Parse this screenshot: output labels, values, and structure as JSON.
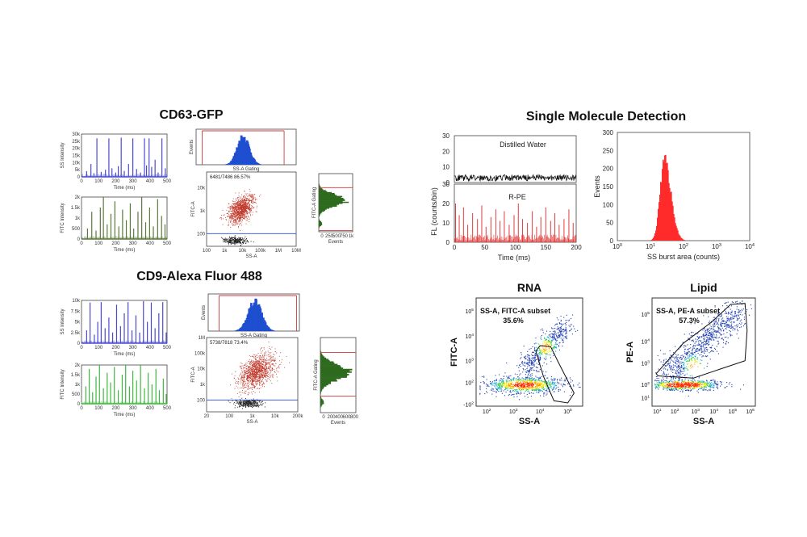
{
  "chart_data": [
    {
      "type": "line",
      "title": "CD63-GFP",
      "ylabel": "SS Intensity",
      "xlabel": "Time (ms)",
      "xlim": [
        0,
        500
      ],
      "ylim": [
        0,
        30000
      ],
      "x_ticks": [
        "0",
        "100",
        "200",
        "300",
        "400",
        "500"
      ],
      "y_ticks": [
        "0",
        "5k",
        "10k",
        "15k",
        "20k",
        "25k",
        "30k"
      ],
      "color": "#4a4ad0",
      "series": [
        {
          "x": [
            30,
            55,
            72,
            90,
            115,
            140,
            160,
            178,
            200,
            215,
            232,
            250,
            275,
            300,
            322,
            345,
            368,
            380,
            395,
            410,
            430,
            448,
            470,
            490
          ],
          "values": [
            4000,
            9000,
            2500,
            27000,
            3500,
            5000,
            27000,
            6000,
            3000,
            7500,
            27500,
            4200,
            9000,
            27000,
            5500,
            3000,
            27000,
            8000,
            27000,
            7000,
            12000,
            3000,
            27000,
            6000
          ]
        }
      ]
    },
    {
      "type": "line",
      "ylabel": "FITC Intensity",
      "xlabel": "Time (ms)",
      "xlim": [
        0,
        500
      ],
      "ylim": [
        0,
        2000
      ],
      "x_ticks": [
        "0",
        "100",
        "200",
        "300",
        "400",
        "500"
      ],
      "y_ticks": [
        "0",
        "500",
        "1k",
        "1.5k",
        "2k"
      ],
      "color": "#5a7a3a",
      "series": [
        {
          "x": [
            35,
            60,
            85,
            110,
            128,
            150,
            172,
            195,
            218,
            240,
            262,
            285,
            305,
            330,
            352,
            375,
            398,
            420,
            445,
            468,
            488
          ],
          "values": [
            500,
            1300,
            400,
            1500,
            2000,
            700,
            1200,
            1800,
            600,
            1400,
            900,
            1700,
            500,
            1300,
            2000,
            800,
            1500,
            600,
            1900,
            1100,
            700
          ]
        }
      ]
    },
    {
      "type": "bar",
      "xlabel": "SS-A Gating",
      "ylabel": "Events",
      "x_scale": "log",
      "xlim": [
        100,
        10000000
      ],
      "gates": [
        200,
        2500000
      ],
      "color": "#1f4fd0",
      "peak_center": 20000,
      "values": [
        0.05,
        0.1,
        0.2,
        0.35,
        0.55,
        0.8,
        1.0,
        0.9,
        0.65,
        0.4,
        0.22,
        0.1,
        0.05
      ]
    },
    {
      "type": "scatter",
      "annotation": "6481/7486  86.57%",
      "xlabel": "SS-A",
      "ylabel": "FITC-A",
      "x_scale": "log",
      "y_scale": "log",
      "xlim": [
        100,
        10000000
      ],
      "x_ticks": [
        "100",
        "1k",
        "10k",
        "100k",
        "1M",
        "10M"
      ],
      "y_ticks": [
        "100",
        "1k",
        "10k"
      ],
      "gate_line_y": 150,
      "colors": [
        "#c0392b",
        "#222222"
      ]
    },
    {
      "type": "bar",
      "orientation": "horizontal",
      "xlabel": "Events",
      "ylabel": "FITC-A Gating",
      "x_ticks": [
        "0",
        "250",
        "500",
        "750",
        "1k"
      ],
      "color": "#2e6a1f",
      "values": [
        0.05,
        0.15,
        0.35,
        0.6,
        0.85,
        1.0,
        0.8,
        0.5,
        0.3,
        0.15,
        0.08,
        0.3,
        0.12
      ]
    },
    {
      "type": "line",
      "title": "CD9-Alexa Fluor 488",
      "ylabel": "SS Intensity",
      "xlabel": "Time (ms)",
      "xlim": [
        0,
        500
      ],
      "ylim": [
        0,
        10000
      ],
      "x_ticks": [
        "0",
        "100",
        "200",
        "300",
        "400",
        "500"
      ],
      "y_ticks": [
        "0",
        "2.5k",
        "5k",
        "7.5k",
        "10k"
      ],
      "color": "#4a4ad0",
      "series": [
        {
          "x": [
            30,
            50,
            75,
            95,
            115,
            138,
            160,
            182,
            205,
            228,
            250,
            272,
            295,
            318,
            340,
            362,
            385,
            408,
            430,
            452,
            475,
            495
          ],
          "values": [
            3000,
            9500,
            2000,
            5000,
            9600,
            3500,
            6000,
            2500,
            9000,
            4000,
            7000,
            9600,
            3000,
            6500,
            2500,
            9800,
            5000,
            9500,
            3500,
            7000,
            9600,
            2500
          ]
        }
      ]
    },
    {
      "type": "line",
      "ylabel": "FITC Intensity",
      "xlabel": "Time (ms)",
      "xlim": [
        0,
        500
      ],
      "ylim": [
        0,
        2000
      ],
      "x_ticks": [
        "0",
        "100",
        "200",
        "300",
        "400",
        "500"
      ],
      "y_ticks": [
        "0",
        "500",
        "1k",
        "1.5k",
        "2k"
      ],
      "color": "#3fb83f",
      "series": [
        {
          "x": [
            25,
            45,
            65,
            85,
            105,
            128,
            150,
            170,
            192,
            215,
            238,
            258,
            280,
            300,
            322,
            345,
            368,
            390,
            412,
            435,
            455,
            478,
            495
          ],
          "values": [
            900,
            1800,
            600,
            1400,
            2000,
            800,
            1600,
            1100,
            1900,
            700,
            1500,
            2000,
            900,
            1700,
            1200,
            2000,
            800,
            1600,
            1000,
            1800,
            700,
            1300,
            500
          ]
        }
      ]
    },
    {
      "type": "bar",
      "xlabel": "SS-A Gating",
      "ylabel": "Events",
      "x_scale": "log",
      "xlim": [
        20,
        200000
      ],
      "gates": [
        60,
        150000
      ],
      "color": "#1f4fd0",
      "peak_center": 2000,
      "values": [
        0.05,
        0.12,
        0.25,
        0.45,
        0.7,
        0.95,
        1.0,
        0.85,
        0.6,
        0.35,
        0.18,
        0.08,
        0.04
      ]
    },
    {
      "type": "scatter",
      "annotation": "5738/7818   73.4%",
      "xlabel": "SS-A",
      "ylabel": "FITC-A",
      "x_scale": "log",
      "y_scale": "log",
      "xlim": [
        20,
        200000
      ],
      "x_ticks": [
        "20",
        "100",
        "1k",
        "10k",
        "200k"
      ],
      "y_ticks": [
        "100",
        "1k",
        "10k",
        "100k",
        "1M"
      ],
      "gate_line_y": 100,
      "colors": [
        "#c0392b",
        "#222222"
      ]
    },
    {
      "type": "bar",
      "orientation": "horizontal",
      "xlabel": "Events",
      "ylabel": "FITC-A Gating",
      "x_ticks": [
        "0",
        "200",
        "400",
        "600",
        "800"
      ],
      "color": "#2e6a1f",
      "values": [
        0.05,
        0.2,
        0.45,
        0.75,
        1.0,
        0.9,
        0.65,
        0.4,
        0.2,
        0.1,
        0.05
      ]
    },
    {
      "type": "line",
      "title": "Single Molecule Detection",
      "annotation": "Distilled Water",
      "ylabel": "FL (counts/bin)",
      "xlim": [
        0,
        200
      ],
      "ylim": [
        0,
        30
      ],
      "y_ticks": [
        "0",
        "10",
        "20",
        "30"
      ],
      "color": "#111111",
      "series": [
        {
          "name": "Distilled Water",
          "baseline": 3,
          "noise": 2
        }
      ]
    },
    {
      "type": "line",
      "annotation": "R-PE",
      "xlabel": "Time (ms)",
      "ylabel": "FL (counts/bin)",
      "xlim": [
        0,
        200
      ],
      "ylim": [
        0,
        30
      ],
      "x_ticks": [
        "0",
        "50",
        "100",
        "150",
        "200"
      ],
      "y_ticks": [
        "0",
        "10",
        "20",
        "30"
      ],
      "color": "#e23b3b",
      "series": [
        {
          "x": [
            2,
            8,
            15,
            22,
            30,
            38,
            45,
            52,
            60,
            68,
            75,
            82,
            90,
            98,
            105,
            112,
            120,
            128,
            135,
            142,
            150,
            158,
            165,
            172,
            180,
            188,
            195
          ],
          "values": [
            20,
            14,
            18,
            9,
            15,
            12,
            19,
            8,
            13,
            17,
            11,
            16,
            9,
            14,
            20,
            12,
            10,
            16,
            8,
            13,
            18,
            11,
            15,
            9,
            12,
            17,
            10
          ]
        }
      ]
    },
    {
      "type": "bar",
      "xlabel": "SS burst area (counts)",
      "ylabel": "Events",
      "x_scale": "log",
      "xlim": [
        1,
        10000
      ],
      "ylim": [
        0,
        300
      ],
      "x_ticks": [
        "10^0",
        "10^1",
        "10^2",
        "10^3",
        "10^4"
      ],
      "y_ticks": [
        "0",
        "50",
        "100",
        "150",
        "200",
        "250",
        "300"
      ],
      "color": "#ff2a2a",
      "peak_center": 25,
      "peak_height": 245
    },
    {
      "type": "scatter",
      "title": "RNA",
      "annotation": "SS-A, FITC-A subset",
      "percent": "35.6%",
      "xlabel": "SS-A",
      "ylabel": "FITC-A",
      "x_scale": "log",
      "y_scale": "log",
      "x_ticks": [
        "10^2",
        "10^3",
        "10^4",
        "10^5"
      ],
      "y_ticks": [
        "-10^2",
        "10^2",
        "10^3",
        "10^4",
        "10^5"
      ]
    },
    {
      "type": "scatter",
      "title": "Lipid",
      "annotation": "SS-A, PE-A subset",
      "percent": "57.3%",
      "xlabel": "SS-A",
      "ylabel": "PE-A",
      "x_scale": "log",
      "y_scale": "log",
      "x_ticks": [
        "10^1",
        "10^2",
        "10^3",
        "10^4",
        "10^5",
        "10^6"
      ],
      "y_ticks": [
        "10^1",
        "10^2",
        "10^3",
        "10^4",
        "10^5"
      ]
    }
  ]
}
